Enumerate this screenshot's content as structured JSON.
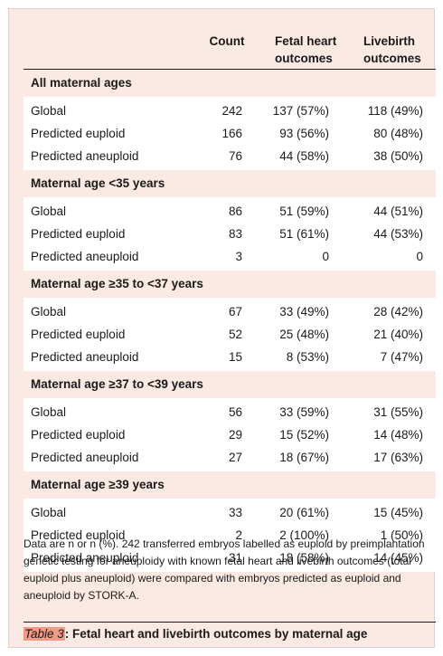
{
  "headers": {
    "label": "",
    "count": "Count",
    "fetal_line1": "Fetal heart",
    "fetal_line2": "outcomes",
    "live_line1": "Livebirth",
    "live_line2": "outcomes"
  },
  "sections": [
    {
      "title": "All maternal ages",
      "rows": [
        {
          "label": "Global",
          "count": "242",
          "fetal": "137 (57%)",
          "live": "118 (49%)"
        },
        {
          "label": "Predicted euploid",
          "count": "166",
          "fetal": "93 (56%)",
          "live": "80 (48%)"
        },
        {
          "label": "Predicted aneuploid",
          "count": "76",
          "fetal": "44 (58%)",
          "live": "38 (50%)"
        }
      ]
    },
    {
      "title": "Maternal age <35 years",
      "rows": [
        {
          "label": "Global",
          "count": "86",
          "fetal": "51 (59%)",
          "live": "44 (51%)"
        },
        {
          "label": "Predicted euploid",
          "count": "83",
          "fetal": "51 (61%)",
          "live": "44 (53%)"
        },
        {
          "label": "Predicted aneuploid",
          "count": "3",
          "fetal": "0",
          "live": "0"
        }
      ]
    },
    {
      "title": "Maternal age ≥35 to <37 years",
      "rows": [
        {
          "label": "Global",
          "count": "67",
          "fetal": "33 (49%)",
          "live": "28 (42%)"
        },
        {
          "label": "Predicted euploid",
          "count": "52",
          "fetal": "25 (48%)",
          "live": "21 (40%)"
        },
        {
          "label": "Predicted aneuploid",
          "count": "15",
          "fetal": "8 (53%)",
          "live": "7 (47%)"
        }
      ]
    },
    {
      "title": "Maternal age ≥37 to <39 years",
      "rows": [
        {
          "label": "Global",
          "count": "56",
          "fetal": "33 (59%)",
          "live": "31 (55%)"
        },
        {
          "label": "Predicted euploid",
          "count": "29",
          "fetal": "15 (52%)",
          "live": "14 (48%)"
        },
        {
          "label": "Predicted aneuploid",
          "count": "27",
          "fetal": "18 (67%)",
          "live": "17 (63%)"
        }
      ]
    },
    {
      "title": "Maternal age ≥39 years",
      "rows": [
        {
          "label": "Global",
          "count": "33",
          "fetal": "20 (61%)",
          "live": "15 (45%)"
        },
        {
          "label": "Predicted euploid",
          "count": "2",
          "fetal": "2 (100%)",
          "live": "1 (50%)"
        },
        {
          "label": "Predicted aneuploid",
          "count": "31",
          "fetal": "18 (58%)",
          "live": "14 (45%)"
        }
      ]
    }
  ],
  "footnote": "Data are n or n (%). 242 transferred embryos labelled as euploid by preimplantation genetic testing for aneuploidy with known fetal heart and livebirth outcomes (total euploid plus aneuploid) were compared with embryos predicted as euploid and aneuploid by STORK-A.",
  "caption": {
    "tag": "Table 3",
    "text": ": Fetal heart and livebirth outcomes by maternal age"
  },
  "colors": {
    "panel_background": "#fbe9e3",
    "row_background": "#ffffff",
    "caption_highlight": "#f39a86"
  }
}
